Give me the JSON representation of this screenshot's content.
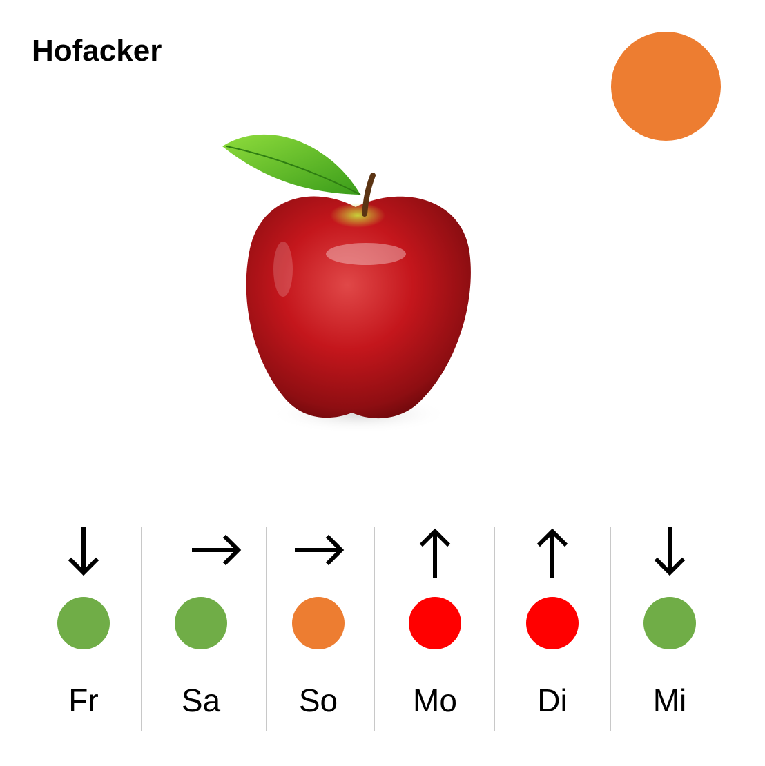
{
  "header": {
    "title": "Hofacker"
  },
  "overall_status": {
    "color": "#ED7D31"
  },
  "image": {
    "icon": "apple-icon"
  },
  "forecast": [
    {
      "day": "Fr",
      "trend": "down",
      "color": "#70AD47"
    },
    {
      "day": "Sa",
      "trend": "right",
      "color": "#70AD47"
    },
    {
      "day": "So",
      "trend": "right",
      "color": "#ED7D31"
    },
    {
      "day": "Mo",
      "trend": "up",
      "color": "#FF0000"
    },
    {
      "day": "Di",
      "trend": "up",
      "color": "#FF0000"
    },
    {
      "day": "Mi",
      "trend": "down",
      "color": "#70AD47"
    }
  ]
}
